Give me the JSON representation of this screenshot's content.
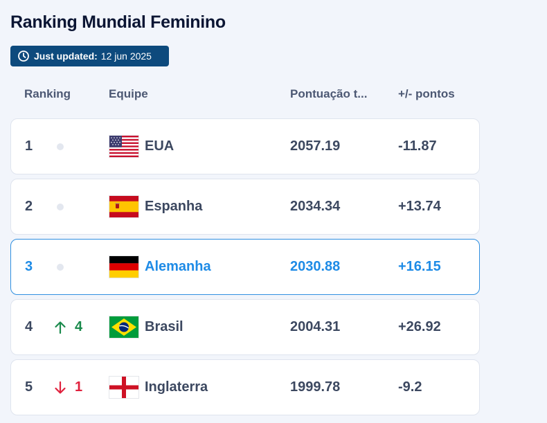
{
  "page": {
    "title": "Ranking Mundial Feminino",
    "updated_label": "Just updated:",
    "updated_date": "12 jun 2025"
  },
  "columns": {
    "rank": "Ranking",
    "team": "Equipe",
    "points": "Pontuação t...",
    "diff": "+/- pontos"
  },
  "rows": [
    {
      "rank": "1",
      "movement": "none",
      "change": "",
      "flag": "usa-flag-icon",
      "team": "EUA",
      "points": "2057.19",
      "diff": "-11.87"
    },
    {
      "rank": "2",
      "movement": "none",
      "change": "",
      "flag": "spain-flag-icon",
      "team": "Espanha",
      "points": "2034.34",
      "diff": "+13.74"
    },
    {
      "rank": "3",
      "movement": "none",
      "change": "",
      "flag": "germany-flag-icon",
      "team": "Alemanha",
      "points": "2030.88",
      "diff": "+16.15",
      "highlighted": true
    },
    {
      "rank": "4",
      "movement": "up",
      "change": "4",
      "flag": "brazil-flag-icon",
      "team": "Brasil",
      "points": "2004.31",
      "diff": "+26.92"
    },
    {
      "rank": "5",
      "movement": "down",
      "change": "1",
      "flag": "england-flag-icon",
      "team": "Inglaterra",
      "points": "1999.78",
      "diff": "-9.2"
    }
  ],
  "colors": {
    "badge_bg": "#0d4a7d",
    "highlight": "#1e8be6",
    "up": "#1a8a4c",
    "down": "#e0213d"
  }
}
